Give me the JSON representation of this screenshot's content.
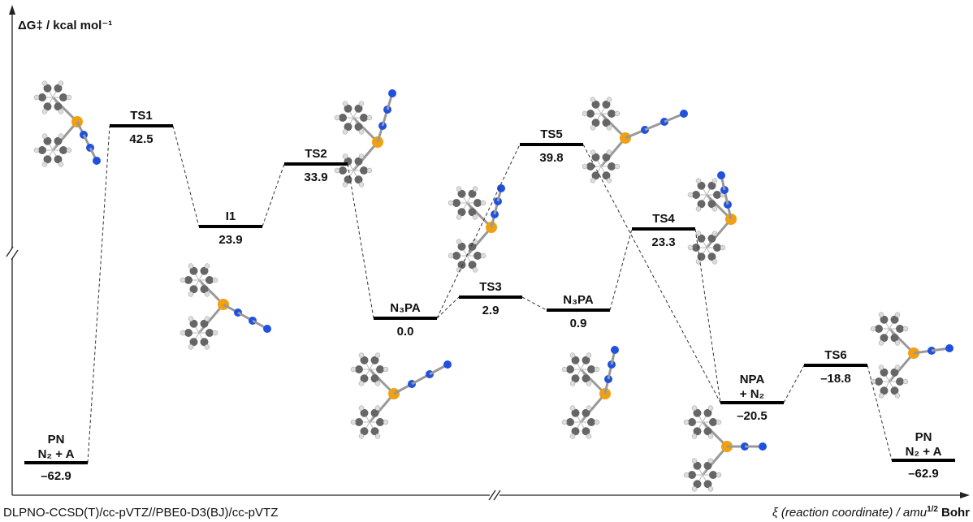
{
  "y_axis_label": "ΔG‡ / kcal mol⁻¹",
  "x_axis_label": {
    "main": "ξ (reaction coordinate) / amu",
    "sup": "1/2",
    "tail": "Bohr"
  },
  "method": "DLPNO-CCSD(T)/cc-pVTZ//PBE0-D3(BJ)/cc-pVTZ",
  "levels": [
    {
      "label": "PN",
      "sublabel": "N₂ + A",
      "value": "–62.9"
    },
    {
      "label": "TS1",
      "value": "42.5"
    },
    {
      "label": "I1",
      "value": "23.9"
    },
    {
      "label": "TS2",
      "value": "33.9"
    },
    {
      "label": "N₃PA",
      "value": "0.0"
    },
    {
      "label": "TS3",
      "value": "2.9"
    },
    {
      "label": "N₃PA",
      "value": "0.9"
    },
    {
      "label": "TS5",
      "value": "39.8"
    },
    {
      "label": "TS4",
      "value": "23.3"
    },
    {
      "label": "NPA",
      "sublabel": "+ N₂",
      "value": "–20.5"
    },
    {
      "label": "TS6",
      "value": "–18.8"
    },
    {
      "label": "PN",
      "sublabel": "N₂ + A",
      "value": "–62.9"
    }
  ]
}
